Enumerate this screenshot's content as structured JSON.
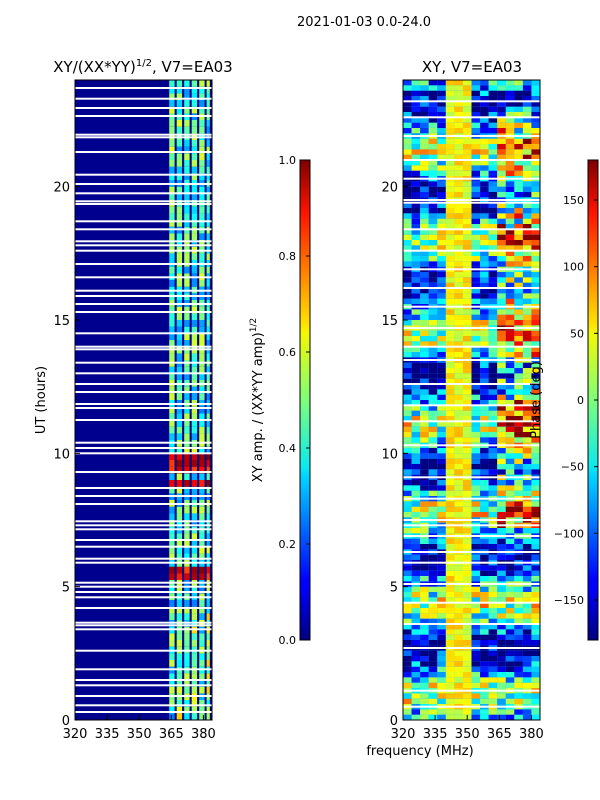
{
  "suptitle": "2021-01-03 0.0-24.0",
  "chart_data": [
    {
      "type": "heatmap",
      "title_main": "XY/(XX*YY)",
      "title_exp": "1/2",
      "title_tail": ", V7=EA03",
      "xlim": [
        320,
        384
      ],
      "ylim": [
        0,
        24
      ],
      "xticks": [
        "320",
        "335",
        "350",
        "365",
        "380"
      ],
      "xtick_values": [
        320,
        335,
        350,
        365,
        380
      ],
      "yticks": [
        "0",
        "5",
        "10",
        "15",
        "20"
      ],
      "ytick_values": [
        0,
        5,
        10,
        15,
        20
      ],
      "ylabel": "UT (hours)",
      "colorbar": {
        "label_main": "XY amp. / (XX*YY amp)",
        "label_exp": "1/2",
        "range": [
          0.0,
          1.0
        ],
        "ticks": [
          "0.0",
          "0.2",
          "0.4",
          "0.6",
          "0.8",
          "1.0"
        ],
        "tick_values": [
          0.0,
          0.2,
          0.4,
          0.6,
          0.8,
          1.0
        ],
        "colormap": "jet"
      },
      "gap_hours": [
        0.3,
        0.55,
        0.9,
        1.3,
        1.5,
        1.9,
        2.6,
        3.4,
        3.55,
        3.65,
        4.2,
        4.6,
        4.8,
        5.0,
        5.15,
        5.9,
        6.05,
        6.5,
        6.75,
        7.15,
        7.3,
        7.45,
        8.1,
        8.4,
        8.7,
        9.3,
        10.0,
        10.2,
        10.4,
        11.25,
        11.7,
        11.85,
        12.3,
        12.6,
        13.0,
        13.4,
        13.9,
        14.0,
        14.5,
        15.3,
        15.6,
        15.9,
        16.1,
        16.6,
        17.1,
        17.6,
        17.8,
        17.95,
        18.4,
        18.7,
        19.35,
        19.45,
        19.75,
        20.1,
        20.45,
        21.3,
        21.85,
        21.95,
        22.65,
        22.95,
        23.3,
        23.7
      ]
    },
    {
      "type": "heatmap",
      "title": "XY, V7=EA03",
      "xlim": [
        320,
        384
      ],
      "ylim": [
        0,
        24
      ],
      "xticks": [
        "320",
        "335",
        "350",
        "365",
        "380"
      ],
      "xtick_values": [
        320,
        335,
        350,
        365,
        380
      ],
      "yticks": [
        "0",
        "5",
        "10",
        "15",
        "20"
      ],
      "ytick_values": [
        0,
        5,
        10,
        15,
        20
      ],
      "xlabel": "frequency (MHz)",
      "colorbar": {
        "label": "Phase (deg)",
        "range": [
          -180,
          180
        ],
        "ticks": [
          "−150",
          "−100",
          "−50",
          "0",
          "50",
          "100",
          "150"
        ],
        "tick_values": [
          -150,
          -100,
          -50,
          0,
          50,
          100,
          150
        ],
        "colormap": "jet"
      },
      "gap_hours": [
        0.5,
        1.1,
        2.7,
        3.6,
        4.4,
        5.1,
        5.9,
        6.3,
        6.9,
        7.3,
        7.5,
        8.3,
        9.1,
        10.3,
        11.2,
        11.8,
        12.6,
        13.5,
        14.0,
        14.7,
        15.5,
        16.2,
        16.9,
        17.6,
        18.4,
        19.4,
        19.5,
        20.3,
        21.0,
        21.9,
        22.6,
        23.2
      ]
    }
  ]
}
